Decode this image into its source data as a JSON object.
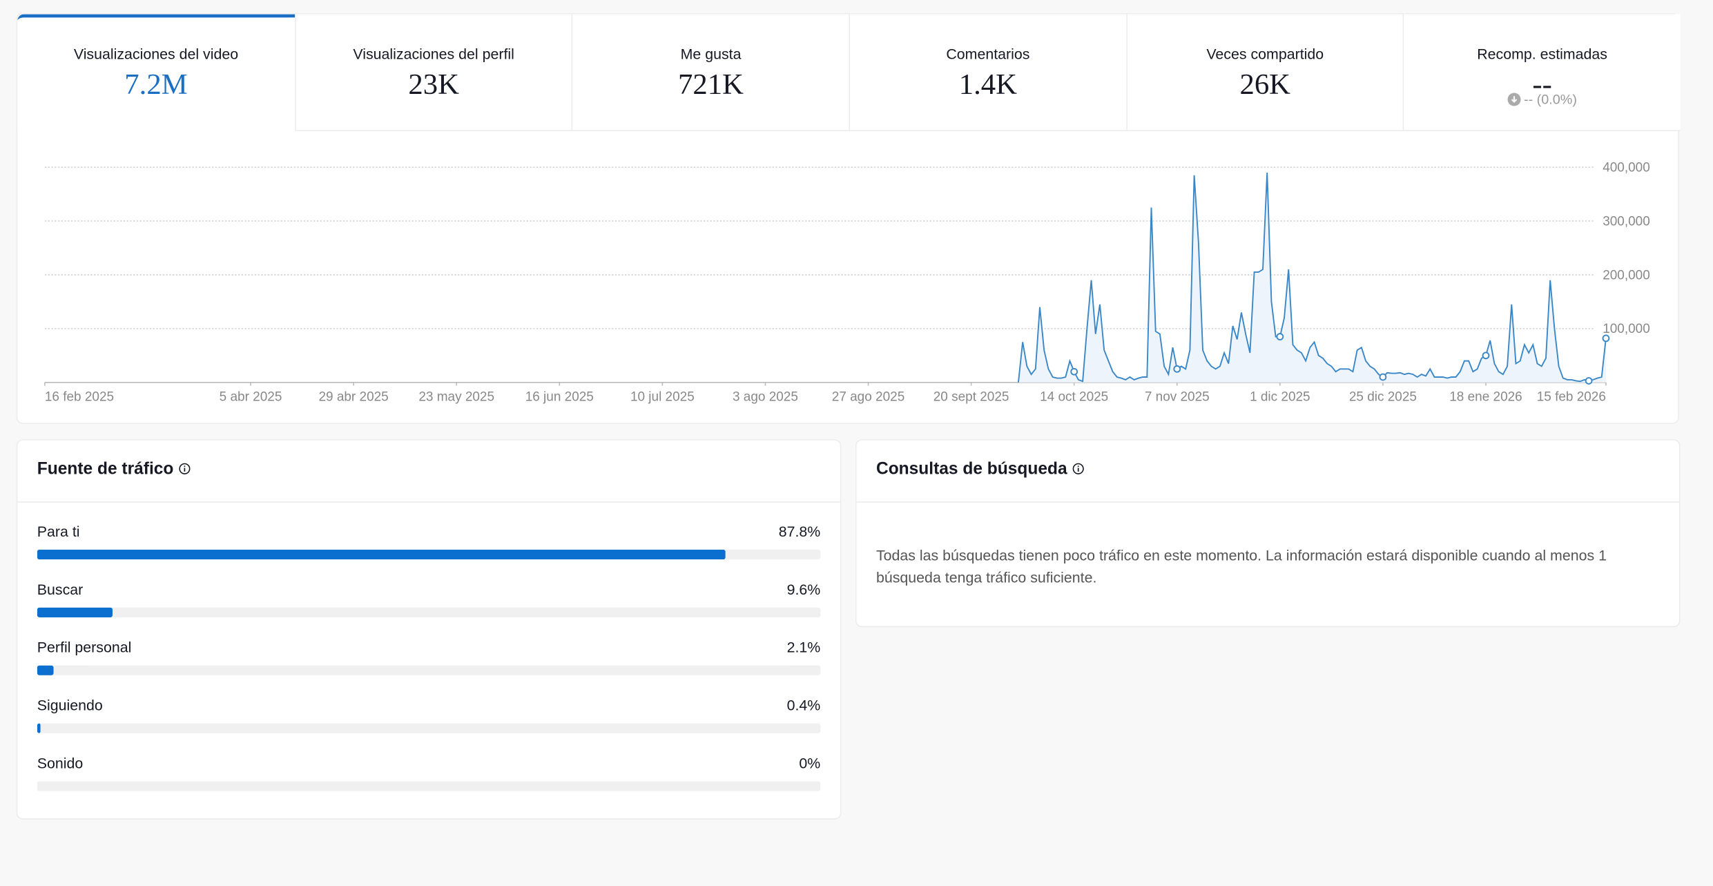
{
  "tabs": [
    {
      "label": "Visualizaciones del video",
      "value": "7.2M"
    },
    {
      "label": "Visualizaciones del perfil",
      "value": "23K"
    },
    {
      "label": "Me gusta",
      "value": "721K"
    },
    {
      "label": "Comentarios",
      "value": "1.4K"
    },
    {
      "label": "Veces compartido",
      "value": "26K"
    },
    {
      "label": "Recomp. estimadas",
      "value": "--",
      "change": "-- (0.0%)"
    }
  ],
  "chart_data": {
    "type": "line",
    "color": "#3a87c8",
    "grid": true,
    "x": [
      "2025-10-01",
      "2025-10-02",
      "2025-10-03",
      "2025-10-04",
      "2025-10-05",
      "2025-10-06",
      "2025-10-07",
      "2025-10-08",
      "2025-10-09",
      "2025-10-10",
      "2025-10-11",
      "2025-10-12",
      "2025-10-13",
      "2025-10-14",
      "2025-10-15",
      "2025-10-16",
      "2025-10-17",
      "2025-10-18",
      "2025-10-19",
      "2025-10-20",
      "2025-10-21",
      "2025-10-22",
      "2025-10-23",
      "2025-10-24",
      "2025-10-25",
      "2025-10-26",
      "2025-10-27",
      "2025-10-28",
      "2025-10-29",
      "2025-10-30",
      "2025-10-31",
      "2025-11-01",
      "2025-11-02",
      "2025-11-03",
      "2025-11-04",
      "2025-11-05",
      "2025-11-06",
      "2025-11-07",
      "2025-11-08",
      "2025-11-09",
      "2025-11-10",
      "2025-11-11",
      "2025-11-12",
      "2025-11-13",
      "2025-11-14",
      "2025-11-15",
      "2025-11-16",
      "2025-11-17",
      "2025-11-18",
      "2025-11-19",
      "2025-11-20",
      "2025-11-21",
      "2025-11-22",
      "2025-11-23",
      "2025-11-24",
      "2025-11-25",
      "2025-11-26",
      "2025-11-27",
      "2025-11-28",
      "2025-11-29",
      "2025-11-30",
      "2025-12-01",
      "2025-12-02",
      "2025-12-03",
      "2025-12-04",
      "2025-12-05",
      "2025-12-06",
      "2025-12-07",
      "2025-12-08",
      "2025-12-09",
      "2025-12-10",
      "2025-12-11",
      "2025-12-12",
      "2025-12-13",
      "2025-12-14",
      "2025-12-15",
      "2025-12-16",
      "2025-12-17",
      "2025-12-18",
      "2025-12-19",
      "2025-12-20",
      "2025-12-21",
      "2025-12-22",
      "2025-12-23",
      "2025-12-24",
      "2025-12-25",
      "2025-12-26",
      "2025-12-27",
      "2025-12-28",
      "2025-12-29",
      "2025-12-30",
      "2025-12-31",
      "2026-01-01",
      "2026-01-02",
      "2026-01-03",
      "2026-01-04",
      "2026-01-05",
      "2026-01-06",
      "2026-01-07",
      "2026-01-08",
      "2026-01-09",
      "2026-01-10",
      "2026-01-11",
      "2026-01-12",
      "2026-01-13",
      "2026-01-14",
      "2026-01-15",
      "2026-01-16",
      "2026-01-17",
      "2026-01-18",
      "2026-01-19",
      "2026-01-20",
      "2026-01-21",
      "2026-01-22",
      "2026-01-23",
      "2026-01-24",
      "2026-01-25",
      "2026-01-26",
      "2026-01-27",
      "2026-01-28",
      "2026-01-29",
      "2026-01-30",
      "2026-01-31",
      "2026-02-01",
      "2026-02-02",
      "2026-02-03",
      "2026-02-04",
      "2026-02-05",
      "2026-02-06",
      "2026-02-07",
      "2026-02-08",
      "2026-02-09",
      "2026-02-10",
      "2026-02-11",
      "2026-02-12",
      "2026-02-13",
      "2026-02-14",
      "2026-02-15"
    ],
    "values": [
      0,
      75000,
      30000,
      15000,
      25000,
      140000,
      60000,
      25000,
      10000,
      8000,
      8000,
      10000,
      40000,
      20000,
      5000,
      2000,
      100000,
      190000,
      90000,
      145000,
      60000,
      40000,
      20000,
      10000,
      8000,
      5000,
      10000,
      5000,
      8000,
      10000,
      10000,
      325000,
      95000,
      90000,
      30000,
      15000,
      65000,
      25000,
      30000,
      25000,
      60000,
      385000,
      260000,
      60000,
      40000,
      30000,
      25000,
      30000,
      55000,
      35000,
      105000,
      80000,
      130000,
      90000,
      55000,
      205000,
      205000,
      210000,
      390000,
      150000,
      85000,
      85000,
      120000,
      210000,
      70000,
      60000,
      55000,
      40000,
      65000,
      75000,
      50000,
      45000,
      35000,
      30000,
      20000,
      25000,
      25000,
      25000,
      20000,
      60000,
      65000,
      40000,
      30000,
      25000,
      15000,
      10000,
      18000,
      17000,
      17000,
      18000,
      15000,
      17000,
      15000,
      10000,
      15000,
      12000,
      25000,
      10000,
      10000,
      10000,
      8000,
      10000,
      10000,
      20000,
      40000,
      40000,
      20000,
      25000,
      45000,
      50000,
      78000,
      35000,
      20000,
      15000,
      30000,
      145000,
      35000,
      40000,
      70000,
      55000,
      70000,
      35000,
      30000,
      45000,
      190000,
      100000,
      30000,
      8000,
      5000,
      5000,
      3000,
      2000,
      5000,
      3000,
      5000,
      8000,
      10000,
      82000
    ],
    "xlim": [
      "2025-02-16",
      "2026-02-15"
    ],
    "xticks": [
      {
        "value": "2025-02-16",
        "label": "16 feb 2025"
      },
      {
        "value": "2025-04-05",
        "label": "5 abr 2025"
      },
      {
        "value": "2025-04-29",
        "label": "29 abr 2025"
      },
      {
        "value": "2025-05-23",
        "label": "23 may 2025"
      },
      {
        "value": "2025-06-16",
        "label": "16 jun 2025"
      },
      {
        "value": "2025-07-10",
        "label": "10 jul 2025"
      },
      {
        "value": "2025-08-03",
        "label": "3 ago 2025"
      },
      {
        "value": "2025-08-27",
        "label": "27 ago 2025"
      },
      {
        "value": "2025-09-20",
        "label": "20 sept 2025"
      },
      {
        "value": "2025-10-14",
        "label": "14 oct 2025"
      },
      {
        "value": "2025-11-07",
        "label": "7 nov 2025"
      },
      {
        "value": "2025-12-01",
        "label": "1 dic 2025"
      },
      {
        "value": "2025-12-25",
        "label": "25 dic 2025"
      },
      {
        "value": "2026-01-18",
        "label": "18 ene 2026"
      },
      {
        "value": "2026-02-15",
        "label": "15 feb 2026"
      }
    ],
    "ylim": [
      0,
      400000
    ],
    "yticks": [
      {
        "value": 100000,
        "label": "100,000"
      },
      {
        "value": 200000,
        "label": "200,000"
      },
      {
        "value": 300000,
        "label": "300,000"
      },
      {
        "value": 400000,
        "label": "400,000"
      }
    ]
  },
  "traffic_source": {
    "title": "Fuente de tráfico",
    "xlim": [
      0,
      100
    ],
    "items": [
      {
        "name": "Para ti",
        "value": 87.8,
        "value_label": "87.8%"
      },
      {
        "name": "Buscar",
        "value": 9.6,
        "value_label": "9.6%"
      },
      {
        "name": "Perfil personal",
        "value": 2.1,
        "value_label": "2.1%"
      },
      {
        "name": "Siguiendo",
        "value": 0.4,
        "value_label": "0.4%"
      },
      {
        "name": "Sonido",
        "value": 0,
        "value_label": "0%"
      }
    ]
  },
  "search_queries": {
    "title": "Consultas de búsqueda",
    "message": "Todas las búsquedas tienen poco tráfico en este momento. La información estará disponible cuando al menos 1 búsqueda tenga tráfico suficiente."
  }
}
